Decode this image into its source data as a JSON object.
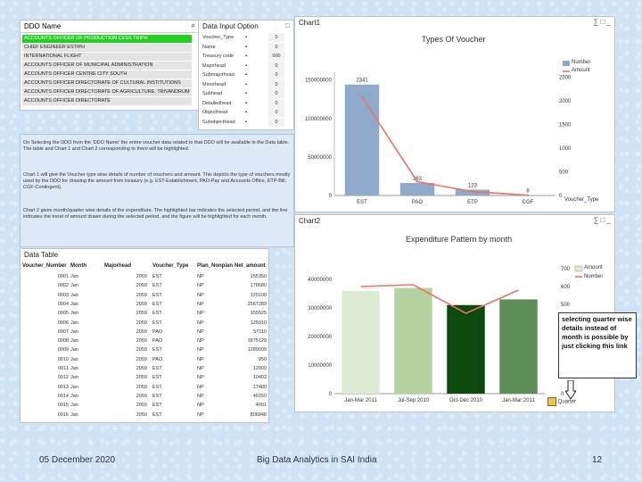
{
  "ddo_panel": {
    "title": "DDO Name",
    "items": [
      {
        "label": "ACCOUNTS OFFICER OF PRODUCTION CESS TRIPH",
        "selected": true
      },
      {
        "label": "CHIEF ENGINEER ESTIPH",
        "selected": false
      },
      {
        "label": "INTERNATIONAL FLIGHT",
        "selected": false
      },
      {
        "label": "ACCOUNTS OFFICER OF MUNICIPAL ADMINISTRATION",
        "selected": false
      },
      {
        "label": "ACCOUNTS OFFICER CENTRE CITY SOUTH",
        "selected": false
      },
      {
        "label": "ACCOUNTS OFFICER DIRECTORATE OF CULTURAL INSTITUTIONS",
        "selected": false
      },
      {
        "label": "ACCOUNTS OFFICER DIRECTORATE OF AGRICULTURE, TRIVANDRUM",
        "selected": false
      },
      {
        "label": "ACCOUNTS OFFICER DIRECTORATE",
        "selected": false
      }
    ]
  },
  "data_input": {
    "title": "Data Input Option",
    "rows": [
      {
        "label": "Voucher_Type",
        "value": "0"
      },
      {
        "label": "Name",
        "value": "0"
      },
      {
        "label": "Treasury code",
        "value": "000"
      },
      {
        "label": "Majorhead",
        "value": "0"
      },
      {
        "label": "Submajorhead",
        "value": "0"
      },
      {
        "label": "Minorhead",
        "value": "0"
      },
      {
        "label": "Subhead",
        "value": "0"
      },
      {
        "label": "Detailedhead",
        "value": "0"
      },
      {
        "label": "Objecthead",
        "value": "0"
      },
      {
        "label": "Subobjecthead",
        "value": "0"
      }
    ]
  },
  "info": {
    "paragraphs": [
      "On Selecting the DDO from the 'DDO Name' the entire voucher data related to that DDO will be available in the Data table. The table and Chart 1 and Chart 2 corresponding to them will be highlighted.",
      "Chart 1 will give the Voucher type wise details of number of vouchers and amount. This depicts the type of vouchers mostly used by the DDO for drawing the amount from treasury (e.g. EST-Establishment, PAO-Pay and Accounts Office, ETP-Bill, CGF-Contingent).",
      "Chart 2 gives month/quarter wise details of the expenditure. The highlighted bar indicates the selected period, and the line indicates the trend of amount drawn during the selected period, and the figure will be highlighted for each month."
    ]
  },
  "data_table": {
    "title": "Data Table",
    "columns": [
      "Voucher_Number",
      "Month",
      "Majorhead",
      "Voucher_Type",
      "Plan_Nonplan",
      "Net_amount"
    ],
    "rows": [
      [
        "0001",
        "Jan",
        "2059",
        "EST",
        "NP",
        "155350"
      ],
      [
        "0002",
        "Jan",
        "2059",
        "EST",
        "NP",
        "178680"
      ],
      [
        "0003",
        "Jan",
        "2059",
        "EST",
        "NP",
        "120100"
      ],
      [
        "0004",
        "Jan",
        "2059",
        "EST",
        "NP",
        "2567289"
      ],
      [
        "0005",
        "Jan",
        "2059",
        "EST",
        "NP",
        "155525"
      ],
      [
        "0006",
        "Jan",
        "2059",
        "EST",
        "NP",
        "125010"
      ],
      [
        "0007",
        "Jan",
        "2059",
        "PAO",
        "NP",
        "57110"
      ],
      [
        "0008",
        "Jan",
        "2059",
        "PAO",
        "NP",
        "1875129"
      ],
      [
        "0009",
        "Jan",
        "2059",
        "EST",
        "NP",
        "1289009"
      ],
      [
        "0010",
        "Jan",
        "2059",
        "PAO",
        "NP",
        "950"
      ],
      [
        "0011",
        "Jan",
        "2059",
        "EST",
        "NP",
        "12000"
      ],
      [
        "0012",
        "Jan",
        "2059",
        "EST",
        "NP",
        "10402"
      ],
      [
        "0013",
        "Jan",
        "2059",
        "EST",
        "NP",
        "17480"
      ],
      [
        "0014",
        "Jan",
        "2059",
        "EST",
        "NP",
        "40150"
      ],
      [
        "0015",
        "Jan",
        "2059",
        "EST",
        "NP",
        "4001"
      ],
      [
        "0016",
        "Jan",
        "2059",
        "EST",
        "NP",
        "806848"
      ]
    ]
  },
  "chart1": {
    "panel_title": "Chart1",
    "title": "Types Of Voucher",
    "legend": [
      "Number",
      "Amount"
    ],
    "xlabel": "Voucher_Type",
    "left_ticks": [
      "0",
      "50000000",
      "100000000",
      "150000000"
    ],
    "right_ticks": [
      "0",
      "500",
      "1000",
      "1500",
      "2000",
      "2500"
    ],
    "bar_labels": [
      "2341",
      "263",
      "123",
      "8"
    ],
    "colors": {
      "bar": "#8fa9cb",
      "line": "#e8736a"
    }
  },
  "chart2": {
    "panel_title": "Chart2",
    "title": "Expenditure Pattern by month",
    "legend": [
      "Amount",
      "Number"
    ],
    "left_ticks": [
      "0",
      "10000000",
      "20000000",
      "30000000",
      "40000000"
    ],
    "right_ticks": [
      "0",
      "100",
      "200",
      "300",
      "400",
      "500",
      "600",
      "700"
    ],
    "colors": {
      "line": "#e8736a"
    }
  },
  "chart_data": [
    {
      "type": "bar",
      "title": "Types Of Voucher",
      "categories": [
        "EST",
        "PAO",
        "ETP",
        "CGF"
      ],
      "series": [
        {
          "name": "Number",
          "values": [
            2341,
            263,
            123,
            8
          ]
        },
        {
          "name": "Amount",
          "values": [
            128000000,
            18000000,
            5000000,
            400000
          ]
        }
      ],
      "xlabel": "Voucher_Type",
      "ylim": [
        0,
        160000000
      ],
      "y2lim": [
        0,
        2600
      ]
    },
    {
      "type": "bar",
      "title": "Expenditure Pattern by month",
      "categories": [
        "Jan-Mar 2011",
        "Jul-Sep 2010",
        "Oct-Dec 2010",
        "Jan-Mar 2011"
      ],
      "series": [
        {
          "name": "Amount",
          "values": [
            36000000,
            37000000,
            31000000,
            33000000
          ],
          "colors": [
            "#dcebd2",
            "#b5d3a1",
            "#0d4a0d",
            "#5e8e58"
          ]
        },
        {
          "name": "Number",
          "values": [
            600,
            610,
            450,
            580
          ]
        }
      ],
      "ylim": [
        0,
        45000000
      ],
      "y2lim": [
        0,
        720
      ]
    }
  ],
  "callout": {
    "text": "selecting quarter wise details instead of month is possible by just clicking this link"
  },
  "footer": {
    "date": "05 December 2020",
    "title": "Big Data Analytics in SAI India",
    "page": "12"
  }
}
